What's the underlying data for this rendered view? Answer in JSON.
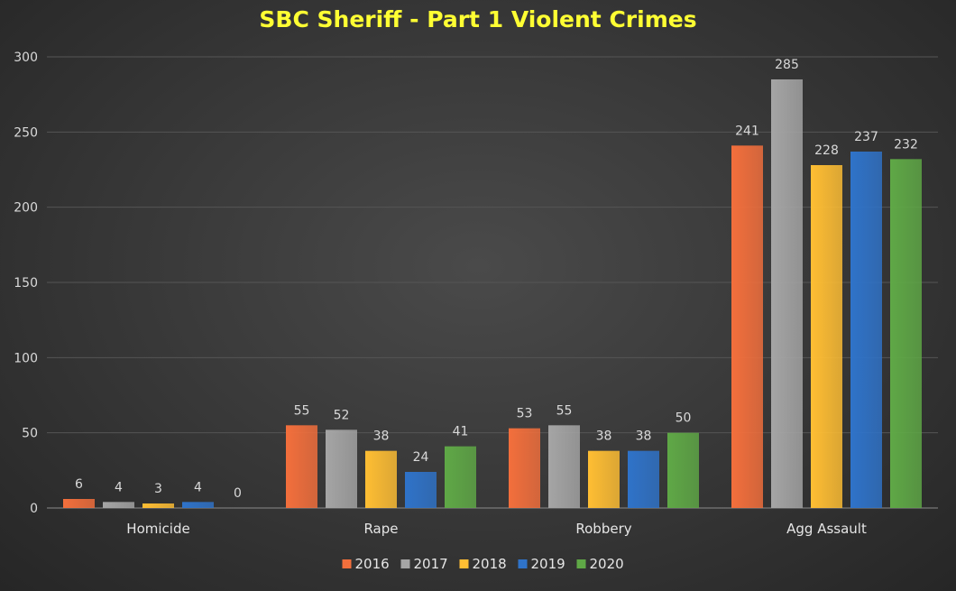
{
  "chart_data": {
    "type": "bar",
    "title": "SBC Sheriff  - Part 1 Violent Crimes",
    "categories": [
      "Homicide",
      "Rape",
      "Robbery",
      "Agg Assault"
    ],
    "series": [
      {
        "name": "2016",
        "color": "#f36f3c",
        "values": [
          6,
          55,
          53,
          241
        ]
      },
      {
        "name": "2017",
        "color": "#a5a5a5",
        "values": [
          4,
          52,
          55,
          285
        ]
      },
      {
        "name": "2018",
        "color": "#ffbe33",
        "values": [
          3,
          38,
          38,
          228
        ]
      },
      {
        "name": "2019",
        "color": "#2f73c9",
        "values": [
          4,
          24,
          38,
          237
        ]
      },
      {
        "name": "2020",
        "color": "#5fa846",
        "values": [
          0,
          41,
          50,
          232
        ]
      }
    ],
    "ylim": [
      0,
      300
    ],
    "yticks": [
      0,
      50,
      100,
      150,
      200,
      250,
      300
    ],
    "grid": true,
    "legend": "bottom",
    "title_color": "#ffff33"
  }
}
